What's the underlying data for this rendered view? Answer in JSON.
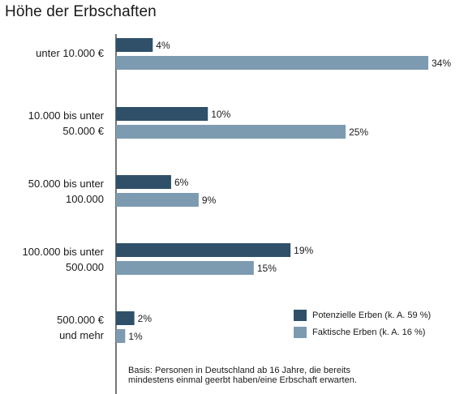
{
  "title": "Höhe der Erbschaften",
  "chart_data": {
    "type": "bar",
    "orientation": "horizontal",
    "categories": [
      [
        "unter 10.000 €"
      ],
      [
        "10.000 bis unter",
        "50.000 €"
      ],
      [
        "50.000 bis unter",
        "100.000"
      ],
      [
        "100.000 bis unter",
        "500.000"
      ],
      [
        "500.000 €",
        "und mehr"
      ]
    ],
    "series": [
      {
        "name": "Potenzielle Erben (k. A. 59 %)",
        "color": "#2f5068",
        "values": [
          4,
          10,
          6,
          19,
          2
        ],
        "labels": [
          "4%",
          "10%",
          "6%",
          "19%",
          "2%"
        ]
      },
      {
        "name": "Faktische Erben (k. A. 16 %)",
        "color": "#7d9bb0",
        "values": [
          34,
          25,
          9,
          15,
          1
        ],
        "labels": [
          "34%",
          "25%",
          "9%",
          "15%",
          "1%"
        ]
      }
    ],
    "xlim": [
      0,
      34
    ],
    "legend_position": "bottom-right",
    "grid": false
  },
  "note": {
    "line1": "Basis: Personen in Deutschland ab 16 Jahre, die bereits",
    "line2": "mindestens einmal geerbt haben/eine Erbschaft erwarten."
  }
}
